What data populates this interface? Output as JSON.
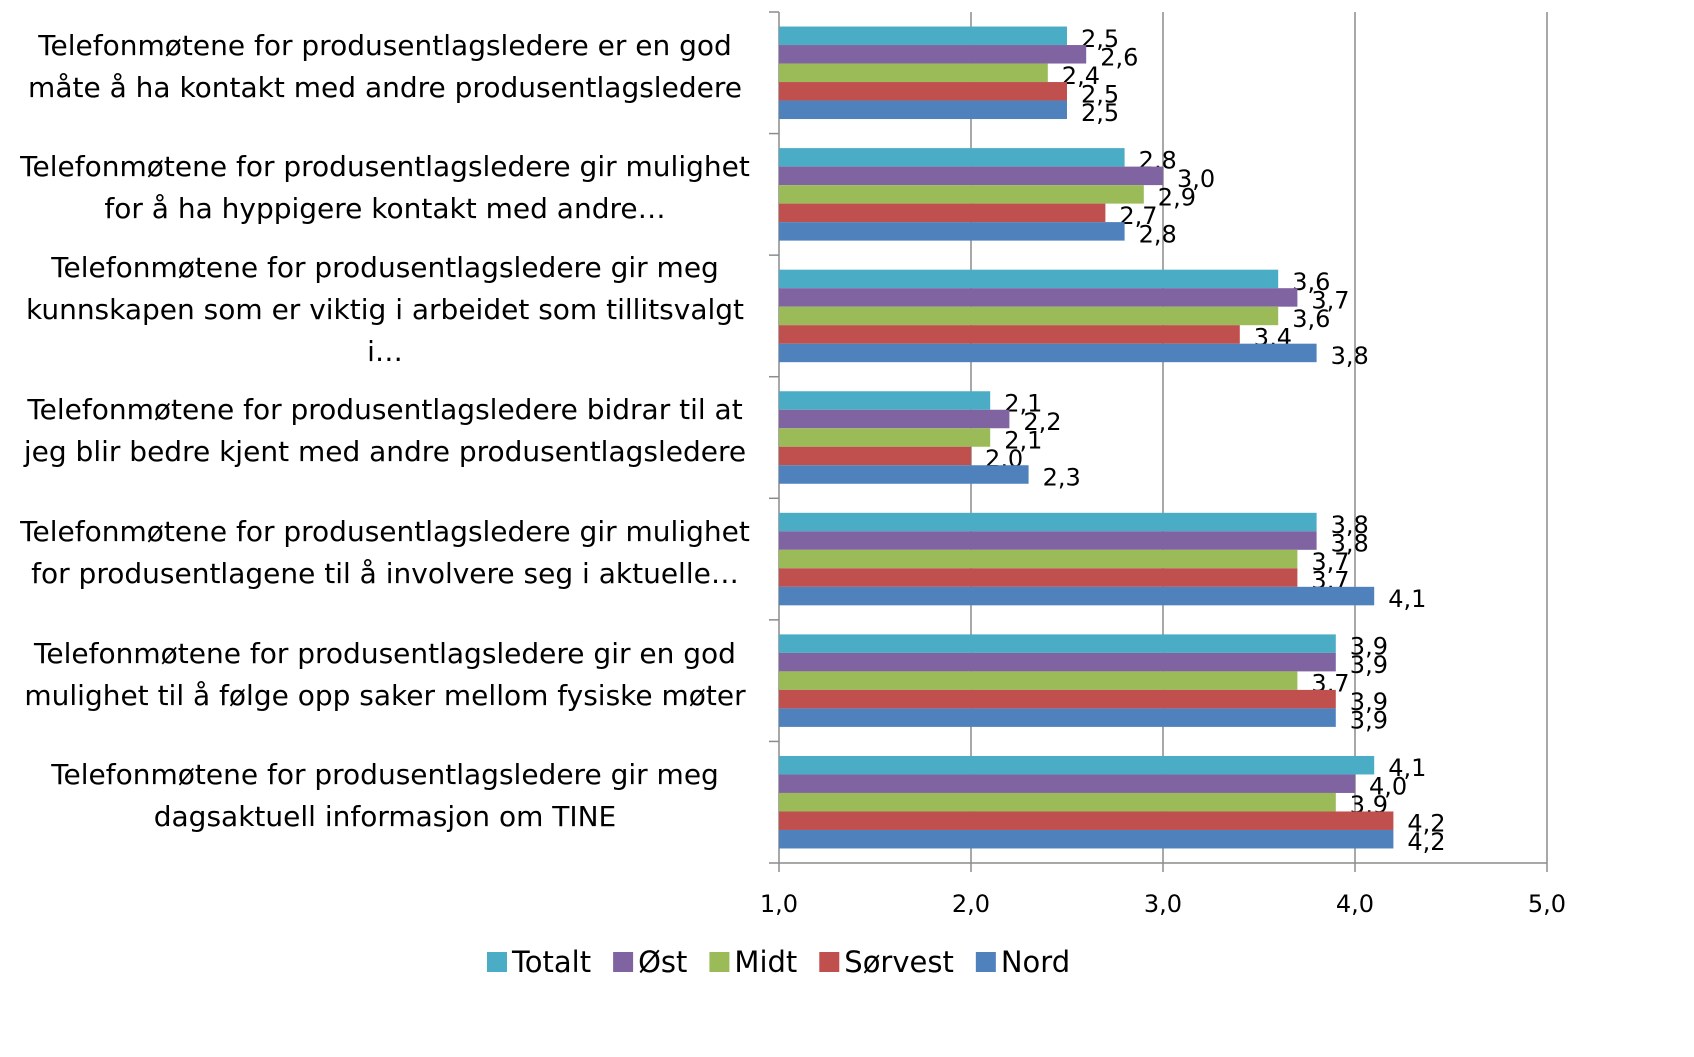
{
  "chart_data": {
    "type": "bar",
    "orientation": "horizontal",
    "categories": [
      "Telefonmøtene for produsentlagsledere er en god måte å ha kontakt med andre produsentlagsledere",
      "Telefonmøtene for produsentlagsledere gir mulighet for å ha hyppigere kontakt med andre…",
      "Telefonmøtene for produsentlagsledere gir meg kunnskapen som er viktig i arbeidet som tillitsvalgt i…",
      "Telefonmøtene for produsentlagsledere bidrar til at jeg blir bedre kjent med andre produsentlagsledere",
      "Telefonmøtene for produsentlagsledere gir mulighet for produsentlagene til å involvere seg i aktuelle…",
      "Telefonmøtene for produsentlagsledere gir en god mulighet til å følge opp saker mellom fysiske møter",
      "Telefonmøtene for produsentlagsledere gir meg dagsaktuell informasjon om TINE"
    ],
    "series": [
      {
        "name": "Totalt",
        "color": "#4bacc6",
        "values": [
          2.5,
          2.8,
          3.6,
          2.1,
          3.8,
          3.9,
          4.1
        ],
        "value_labels": [
          "2,5",
          "2,8",
          "3,6",
          "2,1",
          "3,8",
          "3,9",
          "4,1"
        ]
      },
      {
        "name": "Øst",
        "color": "#8064a2",
        "values": [
          2.6,
          3.0,
          3.7,
          2.2,
          3.8,
          3.9,
          4.0
        ],
        "value_labels": [
          "2,6",
          "3,0",
          "3,7",
          "2,2",
          "3,8",
          "3,9",
          "4,0"
        ]
      },
      {
        "name": "Midt",
        "color": "#9bbb59",
        "values": [
          2.4,
          2.9,
          3.6,
          2.1,
          3.7,
          3.7,
          3.9
        ],
        "value_labels": [
          "2,4",
          "2,9",
          "3,6",
          "2,1",
          "3,7",
          "3,7",
          "3,9"
        ]
      },
      {
        "name": "Sørvest",
        "color": "#c0504d",
        "values": [
          2.5,
          2.7,
          3.4,
          2.0,
          3.7,
          3.9,
          4.2
        ],
        "value_labels": [
          "2,5",
          "2,7",
          "3,4",
          "2,0",
          "3,7",
          "3,9",
          "4,2"
        ]
      },
      {
        "name": "Nord",
        "color": "#4f81bd",
        "values": [
          2.5,
          2.8,
          3.8,
          2.3,
          4.1,
          3.9,
          4.2
        ],
        "value_labels": [
          "2,5",
          "2,8",
          "3,8",
          "2,3",
          "4,1",
          "3,9",
          "4,2"
        ]
      }
    ],
    "xlim": [
      1,
      5
    ],
    "xticks": [
      {
        "value": 1,
        "label": "1,0"
      },
      {
        "value": 2,
        "label": "2,0"
      },
      {
        "value": 3,
        "label": "3,0"
      },
      {
        "value": 4,
        "label": "4,0"
      },
      {
        "value": 5,
        "label": "5,0"
      }
    ],
    "grid": true,
    "legend": "bottom"
  }
}
